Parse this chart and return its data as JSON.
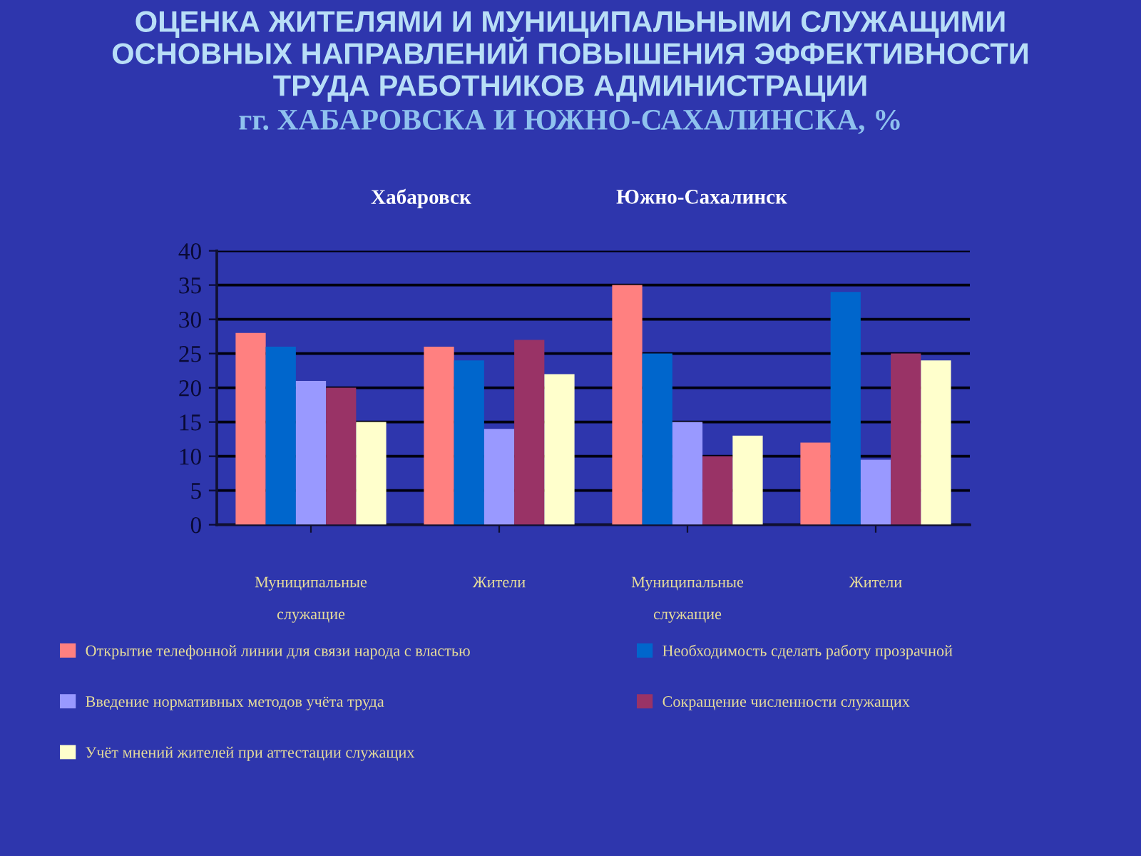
{
  "chart_data": {
    "type": "bar",
    "title": "ОЦЕНКА ЖИТЕЛЯМИ И МУНИЦИПАЛЬНЫМИ СЛУЖАЩИМИ\nОСНОВНЫХ НАПРАВЛЕНИЙ ПОВЫШЕНИЯ ЭФФЕКТИВНОСТИ\nТРУДА РАБОТНИКОВ АДМИНИСТРАЦИИ",
    "subtitle": "гг. ХАБАРОВСКА И ЮЖНО-САХАЛИНСКА, %",
    "annotations": [
      "Хабаровск",
      "Южно-Сахалинск"
    ],
    "categories": [
      "Муниципальные\nслужащие",
      "Жители",
      "Муниципальные\nслужащие",
      "Жители"
    ],
    "series": [
      {
        "name": "Открытие телефонной линии для связи народа с властью",
        "color": "#ff8080",
        "values": [
          28,
          26,
          35,
          12
        ]
      },
      {
        "name": "Необходимость сделать работу прозрачной",
        "color": "#0066cc",
        "values": [
          26,
          24,
          25,
          34
        ]
      },
      {
        "name": "Введение нормативных методов учёта труда",
        "color": "#9999ff",
        "values": [
          21,
          14,
          15,
          9.5
        ]
      },
      {
        "name": "Сокращение численности служащих",
        "color": "#993366",
        "values": [
          20,
          27,
          10,
          25
        ]
      },
      {
        "name": "Учёт мнений жителей при аттестации служащих",
        "color": "#ffffcc",
        "values": [
          15,
          22,
          13,
          24
        ]
      }
    ],
    "ylim": [
      0,
      40
    ],
    "yticks": [
      0,
      5,
      10,
      15,
      20,
      25,
      30,
      35,
      40
    ],
    "grid": "y",
    "legend": "bottom"
  }
}
